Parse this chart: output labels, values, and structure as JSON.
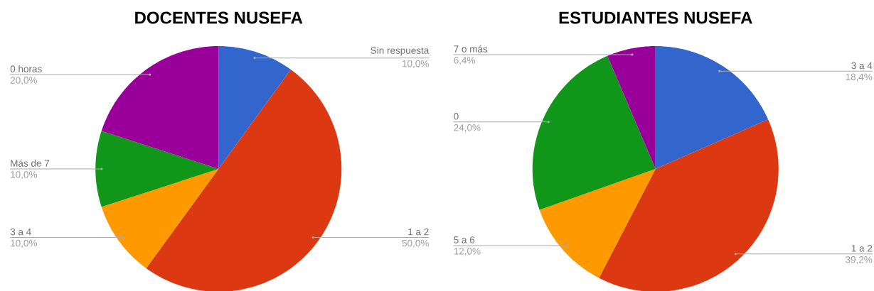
{
  "chart_data": [
    {
      "type": "pie",
      "title": "DOCENTES NUSEFA",
      "categories": [
        "Sin respuesta",
        "1 a 2",
        "3 a 4",
        "Más de 7",
        "0 horas"
      ],
      "values": [
        10.0,
        50.0,
        10.0,
        10.0,
        20.0
      ],
      "colors": [
        "#3366cc",
        "#dc3912",
        "#ff9900",
        "#109618",
        "#990099"
      ],
      "value_labels": [
        "10,0%",
        "50,0%",
        "10,0%",
        "10,0%",
        "20,0%"
      ]
    },
    {
      "type": "pie",
      "title": "ESTUDIANTES NUSEFA",
      "categories": [
        "3 a 4",
        "1 a 2",
        "5 a 6",
        "0",
        "7 o más"
      ],
      "values": [
        18.4,
        39.2,
        12.0,
        24.0,
        6.4
      ],
      "colors": [
        "#3366cc",
        "#dc3912",
        "#ff9900",
        "#109618",
        "#990099"
      ],
      "value_labels": [
        "18,4%",
        "39,2%",
        "12,0%",
        "24,0%",
        "6,4%"
      ]
    }
  ]
}
